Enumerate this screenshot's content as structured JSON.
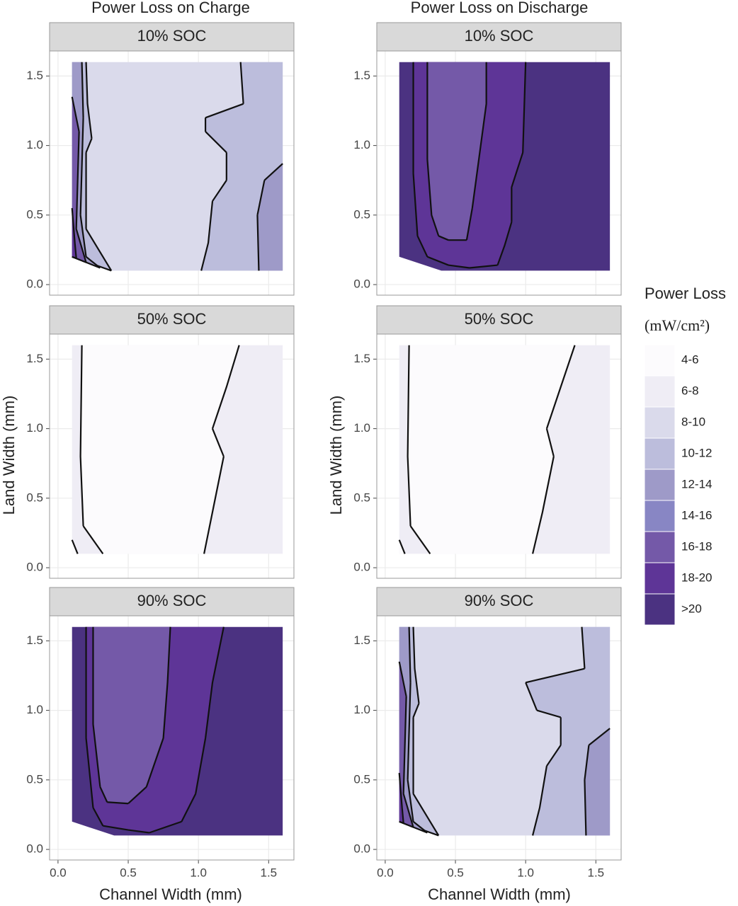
{
  "column_titles": [
    "Power Loss on Charge",
    "Power Loss on Discharge"
  ],
  "x_label": "Channel Width (mm)",
  "y_label": "Land Width (mm)",
  "legend": {
    "title": "Power Loss",
    "unit": "(mW/cm²)",
    "levels": [
      {
        "label": "4-6",
        "color": "#fcfbfd"
      },
      {
        "label": "6-8",
        "color": "#efedf5"
      },
      {
        "label": "8-10",
        "color": "#dadaeb"
      },
      {
        "label": "10-12",
        "color": "#bcbddc"
      },
      {
        "label": "12-14",
        "color": "#9e9ac8"
      },
      {
        "label": "14-16",
        "color": "#8886c4"
      },
      {
        "label": "16-18",
        "color": "#7459a8"
      },
      {
        "label": "18-20",
        "color": "#5e3597"
      },
      {
        "label": ">20",
        "color": "#4b3281"
      }
    ]
  },
  "chart_data": [
    {
      "type": "contour",
      "title": "10% SOC",
      "xlim": [
        -0.06,
        1.68
      ],
      "ylim": [
        -0.076,
        1.68
      ],
      "xticks": [
        {
          "value": 0,
          "label": "0.0"
        },
        0.5,
        {
          "value": 1,
          "label": "1.0"
        },
        1.5
      ],
      "yticks": [
        {
          "value": 0,
          "label": "0.0"
        },
        0.5,
        {
          "value": 1,
          "label": "1.0"
        },
        1.5
      ],
      "regions": [
        {
          "level": "8-10",
          "points": [
            [
              0.1,
              0.2
            ],
            [
              0.1,
              1.6
            ],
            [
              1.6,
              1.6
            ],
            [
              1.6,
              0.1
            ],
            [
              0.38,
              0.1
            ]
          ]
        },
        {
          "level": "10-12",
          "points": [
            [
              1.3,
              1.6
            ],
            [
              1.32,
              1.3
            ],
            [
              1.05,
              1.2
            ],
            [
              1.05,
              1.1
            ],
            [
              1.2,
              0.95
            ],
            [
              1.2,
              0.75
            ],
            [
              1.1,
              0.6
            ],
            [
              1.07,
              0.3
            ],
            [
              1.02,
              0.1
            ],
            [
              1.6,
              0.1
            ],
            [
              1.6,
              1.6
            ]
          ]
        },
        {
          "level": "12-14",
          "points": [
            [
              1.6,
              0.87
            ],
            [
              1.47,
              0.75
            ],
            [
              1.42,
              0.5
            ],
            [
              1.43,
              0.1
            ],
            [
              1.6,
              0.1
            ]
          ]
        },
        {
          "level": "10-12",
          "points": [
            [
              0.1,
              0.2
            ],
            [
              0.1,
              1.6
            ],
            [
              0.2,
              1.6
            ],
            [
              0.21,
              1.3
            ],
            [
              0.24,
              1.05
            ],
            [
              0.2,
              0.95
            ],
            [
              0.2,
              0.4
            ],
            [
              0.38,
              0.1
            ]
          ]
        },
        {
          "level": "12-14",
          "points": [
            [
              0.1,
              0.2
            ],
            [
              0.1,
              1.6
            ],
            [
              0.17,
              1.6
            ],
            [
              0.18,
              1.2
            ],
            [
              0.16,
              0.5
            ],
            [
              0.2,
              0.2
            ],
            [
              0.3,
              0.12
            ]
          ]
        },
        {
          "level": "16-18",
          "points": [
            [
              0.1,
              0.2
            ],
            [
              0.1,
              1.35
            ],
            [
              0.15,
              1.1
            ],
            [
              0.13,
              0.4
            ],
            [
              0.2,
              0.16
            ]
          ]
        },
        {
          "level": "18-20",
          "points": [
            [
              0.1,
              0.2
            ],
            [
              0.1,
              0.55
            ],
            [
              0.12,
              0.3
            ],
            [
              0.13,
              0.19
            ]
          ]
        }
      ]
    },
    {
      "type": "contour",
      "title": "10% SOC",
      "xlim": [
        -0.06,
        1.68
      ],
      "ylim": [
        -0.076,
        1.68
      ],
      "xticks": [
        {
          "value": 0,
          "label": "0.0"
        },
        0.5,
        {
          "value": 1,
          "label": "1.0"
        },
        1.5
      ],
      "yticks": [
        {
          "value": 0,
          "label": "0.0"
        },
        0.5,
        {
          "value": 1,
          "label": "1.0"
        },
        1.5
      ],
      "regions": [
        {
          "level": ">20",
          "points": [
            [
              0.1,
              0.2
            ],
            [
              0.1,
              1.6
            ],
            [
              1.6,
              1.6
            ],
            [
              1.6,
              0.1
            ],
            [
              0.4,
              0.1
            ]
          ]
        },
        {
          "level": "18-20",
          "points": [
            [
              0.2,
              1.6
            ],
            [
              0.2,
              0.8
            ],
            [
              0.23,
              0.35
            ],
            [
              0.3,
              0.2
            ],
            [
              0.45,
              0.14
            ],
            [
              0.6,
              0.12
            ],
            [
              0.8,
              0.14
            ],
            [
              0.85,
              0.28
            ],
            [
              0.9,
              0.45
            ],
            [
              0.9,
              0.7
            ],
            [
              0.98,
              0.95
            ],
            [
              1.0,
              1.6
            ]
          ]
        },
        {
          "level": "16-18",
          "points": [
            [
              0.3,
              1.6
            ],
            [
              0.3,
              0.9
            ],
            [
              0.33,
              0.5
            ],
            [
              0.38,
              0.35
            ],
            [
              0.45,
              0.32
            ],
            [
              0.58,
              0.32
            ],
            [
              0.62,
              0.55
            ],
            [
              0.68,
              1.0
            ],
            [
              0.72,
              1.3
            ],
            [
              0.72,
              1.6
            ]
          ]
        }
      ]
    },
    {
      "type": "contour",
      "title": "50% SOC",
      "xlim": [
        -0.06,
        1.68
      ],
      "ylim": [
        -0.076,
        1.68
      ],
      "xticks": [
        {
          "value": 0,
          "label": "0.0"
        },
        0.5,
        {
          "value": 1,
          "label": "1.0"
        },
        1.5
      ],
      "yticks": [
        {
          "value": 0,
          "label": "0.0"
        },
        0.5,
        {
          "value": 1,
          "label": "1.0"
        },
        1.5
      ],
      "regions": [
        {
          "level": "6-8",
          "points": [
            [
              0.1,
              0.1
            ],
            [
              0.1,
              1.6
            ],
            [
              1.6,
              1.6
            ],
            [
              1.6,
              0.1
            ]
          ]
        },
        {
          "level": "4-6",
          "points": [
            [
              0.17,
              1.6
            ],
            [
              0.16,
              0.8
            ],
            [
              0.18,
              0.3
            ],
            [
              0.32,
              0.1
            ],
            [
              1.04,
              0.1
            ],
            [
              1.1,
              0.4
            ],
            [
              1.18,
              0.8
            ],
            [
              1.1,
              1.0
            ],
            [
              1.2,
              1.3
            ],
            [
              1.29,
              1.6
            ]
          ]
        },
        {
          "level": "4-6",
          "points": [
            [
              0.1,
              0.1
            ],
            [
              0.1,
              0.2
            ],
            [
              0.14,
              0.1
            ]
          ]
        }
      ]
    },
    {
      "type": "contour",
      "title": "50% SOC",
      "xlim": [
        -0.06,
        1.68
      ],
      "ylim": [
        -0.076,
        1.68
      ],
      "xticks": [
        {
          "value": 0,
          "label": "0.0"
        },
        0.5,
        {
          "value": 1,
          "label": "1.0"
        },
        1.5
      ],
      "yticks": [
        {
          "value": 0,
          "label": "0.0"
        },
        0.5,
        {
          "value": 1,
          "label": "1.0"
        },
        1.5
      ],
      "regions": [
        {
          "level": "6-8",
          "points": [
            [
              0.1,
              0.1
            ],
            [
              0.1,
              1.6
            ],
            [
              1.6,
              1.6
            ],
            [
              1.6,
              0.1
            ]
          ]
        },
        {
          "level": "4-6",
          "points": [
            [
              0.17,
              1.6
            ],
            [
              0.16,
              0.8
            ],
            [
              0.18,
              0.3
            ],
            [
              0.32,
              0.1
            ],
            [
              1.05,
              0.1
            ],
            [
              1.12,
              0.4
            ],
            [
              1.2,
              0.8
            ],
            [
              1.15,
              1.0
            ],
            [
              1.25,
              1.3
            ],
            [
              1.35,
              1.6
            ]
          ]
        },
        {
          "level": "4-6",
          "points": [
            [
              0.1,
              0.1
            ],
            [
              0.1,
              0.2
            ],
            [
              0.14,
              0.1
            ]
          ]
        }
      ]
    },
    {
      "type": "contour",
      "title": "90% SOC",
      "xlim": [
        -0.06,
        1.68
      ],
      "ylim": [
        -0.076,
        1.68
      ],
      "xticks": [
        {
          "value": 0,
          "label": "0.0"
        },
        0.5,
        {
          "value": 1,
          "label": "1.0"
        },
        1.5
      ],
      "yticks": [
        {
          "value": 0,
          "label": "0.0"
        },
        0.5,
        {
          "value": 1,
          "label": "1.0"
        },
        1.5
      ],
      "regions": [
        {
          "level": ">20",
          "points": [
            [
              0.1,
              0.2
            ],
            [
              0.1,
              1.6
            ],
            [
              1.6,
              1.6
            ],
            [
              1.6,
              0.1
            ],
            [
              0.4,
              0.1
            ]
          ]
        },
        {
          "level": "18-20",
          "points": [
            [
              0.2,
              1.6
            ],
            [
              0.2,
              0.8
            ],
            [
              0.25,
              0.3
            ],
            [
              0.32,
              0.17
            ],
            [
              0.5,
              0.14
            ],
            [
              0.65,
              0.12
            ],
            [
              0.88,
              0.2
            ],
            [
              0.98,
              0.4
            ],
            [
              1.05,
              0.8
            ],
            [
              1.1,
              1.2
            ],
            [
              1.18,
              1.6
            ]
          ]
        },
        {
          "level": "16-18",
          "points": [
            [
              0.25,
              1.6
            ],
            [
              0.25,
              0.9
            ],
            [
              0.3,
              0.45
            ],
            [
              0.35,
              0.34
            ],
            [
              0.5,
              0.33
            ],
            [
              0.63,
              0.45
            ],
            [
              0.75,
              0.8
            ],
            [
              0.78,
              1.2
            ],
            [
              0.8,
              1.6
            ]
          ]
        }
      ]
    },
    {
      "type": "contour",
      "title": "90% SOC",
      "xlim": [
        -0.06,
        1.68
      ],
      "ylim": [
        -0.076,
        1.68
      ],
      "xticks": [
        {
          "value": 0,
          "label": "0.0"
        },
        0.5,
        {
          "value": 1,
          "label": "1.0"
        },
        1.5
      ],
      "yticks": [
        {
          "value": 0,
          "label": "0.0"
        },
        0.5,
        {
          "value": 1,
          "label": "1.0"
        },
        1.5
      ],
      "regions": [
        {
          "level": "8-10",
          "points": [
            [
              0.1,
              0.2
            ],
            [
              0.1,
              1.6
            ],
            [
              1.6,
              1.6
            ],
            [
              1.6,
              0.1
            ],
            [
              0.38,
              0.1
            ]
          ]
        },
        {
          "level": "10-12",
          "points": [
            [
              1.4,
              1.6
            ],
            [
              1.42,
              1.3
            ],
            [
              1.0,
              1.2
            ],
            [
              1.08,
              1.0
            ],
            [
              1.25,
              0.95
            ],
            [
              1.25,
              0.75
            ],
            [
              1.15,
              0.6
            ],
            [
              1.1,
              0.3
            ],
            [
              1.05,
              0.1
            ],
            [
              1.6,
              0.1
            ],
            [
              1.6,
              1.6
            ]
          ]
        },
        {
          "level": "12-14",
          "points": [
            [
              1.6,
              0.87
            ],
            [
              1.45,
              0.75
            ],
            [
              1.42,
              0.5
            ],
            [
              1.43,
              0.1
            ],
            [
              1.6,
              0.1
            ]
          ]
        },
        {
          "level": "10-12",
          "points": [
            [
              0.1,
              0.2
            ],
            [
              0.1,
              1.6
            ],
            [
              0.2,
              1.6
            ],
            [
              0.21,
              1.3
            ],
            [
              0.24,
              1.05
            ],
            [
              0.2,
              0.95
            ],
            [
              0.2,
              0.4
            ],
            [
              0.38,
              0.1
            ]
          ]
        },
        {
          "level": "12-14",
          "points": [
            [
              0.1,
              0.2
            ],
            [
              0.1,
              1.6
            ],
            [
              0.17,
              1.6
            ],
            [
              0.18,
              1.2
            ],
            [
              0.16,
              0.5
            ],
            [
              0.2,
              0.2
            ],
            [
              0.3,
              0.12
            ]
          ]
        },
        {
          "level": "16-18",
          "points": [
            [
              0.1,
              0.2
            ],
            [
              0.1,
              1.35
            ],
            [
              0.15,
              1.1
            ],
            [
              0.13,
              0.4
            ],
            [
              0.2,
              0.16
            ]
          ]
        },
        {
          "level": "18-20",
          "points": [
            [
              0.1,
              0.2
            ],
            [
              0.1,
              0.55
            ],
            [
              0.12,
              0.3
            ],
            [
              0.13,
              0.19
            ]
          ]
        }
      ]
    }
  ]
}
